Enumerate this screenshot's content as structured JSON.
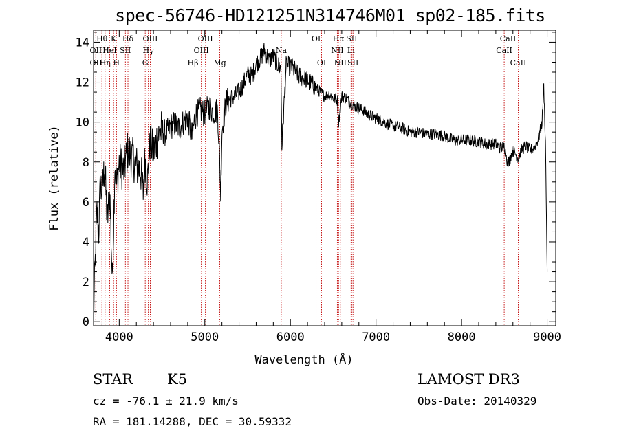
{
  "chart_data": {
    "type": "line",
    "title": "spec-56746-HD121251N314746M01_sp02-185.fits",
    "xlabel": "Wavelength (Å)",
    "ylabel": "Flux (relative)",
    "xlim": [
      3700,
      9100
    ],
    "ylim": [
      -0.2,
      14.6
    ],
    "x_ticks": [
      4000,
      5000,
      6000,
      7000,
      8000,
      9000
    ],
    "y_ticks": [
      0,
      2,
      4,
      6,
      8,
      10,
      12,
      14
    ],
    "grid": false,
    "series": [
      {
        "name": "Flux",
        "x": [
          3700,
          3720,
          3740,
          3760,
          3780,
          3800,
          3830,
          3860,
          3890,
          3920,
          3950,
          3970,
          4000,
          4050,
          4100,
          4150,
          4200,
          4250,
          4280,
          4300,
          4330,
          4360,
          4400,
          4450,
          4500,
          4550,
          4600,
          4650,
          4700,
          4750,
          4800,
          4850,
          4880,
          4900,
          4950,
          5000,
          5050,
          5100,
          5150,
          5170,
          5185,
          5200,
          5250,
          5300,
          5350,
          5400,
          5450,
          5500,
          5550,
          5600,
          5650,
          5700,
          5750,
          5800,
          5850,
          5890,
          5900,
          5950,
          6000,
          6050,
          6100,
          6150,
          6200,
          6250,
          6300,
          6350,
          6400,
          6450,
          6500,
          6550,
          6563,
          6600,
          6650,
          6700,
          6750,
          6800,
          6850,
          6900,
          6950,
          7000,
          7100,
          7200,
          7300,
          7400,
          7500,
          7600,
          7700,
          7800,
          7900,
          8000,
          8100,
          8200,
          8300,
          8400,
          8450,
          8500,
          8542,
          8600,
          8662,
          8700,
          8750,
          8800,
          8850,
          8900,
          8940,
          8960,
          8980,
          9000
        ],
        "y": [
          0.2,
          3.0,
          5.5,
          4.5,
          7.0,
          6.5,
          7.8,
          5.0,
          6.5,
          2.0,
          8.0,
          6.8,
          8.0,
          7.5,
          8.6,
          8.2,
          7.8,
          7.6,
          6.5,
          8.2,
          7.0,
          9.0,
          8.5,
          9.3,
          9.6,
          9.4,
          9.8,
          9.9,
          9.7,
          10.0,
          10.3,
          9.2,
          10.1,
          10.4,
          10.6,
          10.4,
          10.8,
          10.5,
          10.6,
          8.5,
          6.4,
          9.6,
          11.0,
          11.2,
          11.3,
          11.5,
          11.9,
          12.4,
          12.3,
          12.9,
          13.2,
          13.6,
          13.1,
          13.3,
          12.9,
          12.7,
          8.8,
          12.8,
          12.8,
          12.6,
          12.3,
          12.2,
          12.1,
          11.9,
          11.7,
          11.5,
          11.3,
          11.4,
          11.2,
          11.1,
          10.0,
          11.3,
          11.2,
          11.0,
          10.8,
          10.7,
          10.6,
          10.4,
          10.3,
          10.2,
          10.0,
          9.8,
          9.7,
          9.5,
          9.5,
          9.4,
          9.4,
          9.3,
          9.1,
          9.1,
          9.1,
          9.0,
          8.9,
          8.9,
          8.7,
          8.8,
          7.9,
          8.6,
          8.2,
          8.6,
          8.8,
          8.6,
          8.7,
          9.2,
          10.0,
          11.8,
          9.0,
          2.5
        ]
      }
    ],
    "lines": [
      {
        "label": "OII",
        "x": 3727,
        "row": 3
      },
      {
        "label": "Hθ",
        "x": 3798,
        "row": 1
      },
      {
        "label": "OII",
        "x": 3727,
        "row": 2
      },
      {
        "label": "Hη",
        "x": 3835,
        "row": 3
      },
      {
        "label": "HeI",
        "x": 3889,
        "row": 2
      },
      {
        "label": "K",
        "x": 3934,
        "row": 1
      },
      {
        "label": "H",
        "x": 3968,
        "row": 3
      },
      {
        "label": "SII",
        "x": 4072,
        "row": 2
      },
      {
        "label": "Hδ",
        "x": 4102,
        "row": 1
      },
      {
        "label": "G",
        "x": 4304,
        "row": 3
      },
      {
        "label": "Hγ",
        "x": 4340,
        "row": 2
      },
      {
        "label": "OIII",
        "x": 4363,
        "row": 1
      },
      {
        "label": "Hβ",
        "x": 4861,
        "row": 3
      },
      {
        "label": "OIII",
        "x": 4959,
        "row": 2
      },
      {
        "label": "OIII",
        "x": 5007,
        "row": 1
      },
      {
        "label": "Mg",
        "x": 5175,
        "row": 3
      },
      {
        "label": "Na",
        "x": 5893,
        "row": 2
      },
      {
        "label": "OI",
        "x": 6300,
        "row": 1
      },
      {
        "label": "OI",
        "x": 6364,
        "row": 3
      },
      {
        "label": "NII",
        "x": 6548,
        "row": 2
      },
      {
        "label": "Hα",
        "x": 6563,
        "row": 1
      },
      {
        "label": "NII",
        "x": 6583,
        "row": 3
      },
      {
        "label": "Li",
        "x": 6708,
        "row": 2
      },
      {
        "label": "SII",
        "x": 6716,
        "row": 1
      },
      {
        "label": "SII",
        "x": 6731,
        "row": 3
      },
      {
        "label": "CaII",
        "x": 8498,
        "row": 2
      },
      {
        "label": "CaII",
        "x": 8542,
        "row": 1
      },
      {
        "label": "CaII",
        "x": 8662,
        "row": 3
      }
    ]
  },
  "info": {
    "class": "STAR",
    "subclass": "K5",
    "cz": "cz = -76.1 ± 21.9 km/s",
    "coords": "RA = 181.14288, DEC =  30.59332",
    "survey": "LAMOST DR3",
    "obs_date": "Obs-Date: 20140329"
  }
}
